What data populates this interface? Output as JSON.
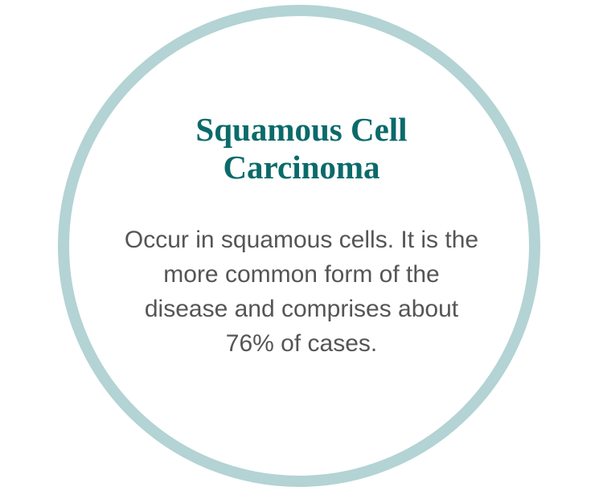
{
  "colors": {
    "ring": "#b3d3d4",
    "title": "#0b6a6a",
    "body_text": "#555555",
    "background": "#ffffff"
  },
  "card": {
    "title_lines": [
      "Squamous Cell",
      "Carcinoma"
    ],
    "body_lines": [
      "Occur in squamous cells. It is the",
      "more common form of the",
      "disease and comprises about",
      "76% of cases."
    ]
  }
}
